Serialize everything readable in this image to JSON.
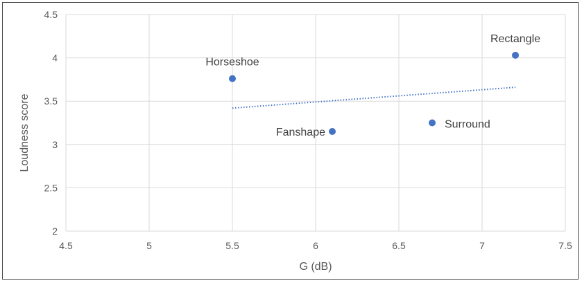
{
  "chart_data": {
    "type": "scatter",
    "title": "",
    "xlabel": "G (dB)",
    "ylabel": "Loudness score",
    "xlim": [
      4.5,
      7.5
    ],
    "ylim": [
      2,
      4.5
    ],
    "x_ticks": [
      "4.5",
      "5",
      "5.5",
      "6",
      "6.5",
      "7",
      "7.5"
    ],
    "y_ticks": [
      "2",
      "2.5",
      "3",
      "3.5",
      "4",
      "4.5"
    ],
    "grid": true,
    "legend": "none",
    "points": [
      {
        "label": "Horseshoe",
        "x": 5.5,
        "y": 3.76
      },
      {
        "label": "Fanshape",
        "x": 6.1,
        "y": 3.15
      },
      {
        "label": "Surround",
        "x": 6.7,
        "y": 3.25
      },
      {
        "label": "Rectangle",
        "x": 7.2,
        "y": 4.03
      }
    ],
    "trendline": {
      "type": "linear",
      "style": "dotted",
      "x": [
        5.5,
        7.2
      ],
      "y": [
        3.42,
        3.66
      ]
    },
    "colors": {
      "point": "#4472C4",
      "trendline": "#4472C4",
      "grid": "#D9D9D9"
    }
  }
}
